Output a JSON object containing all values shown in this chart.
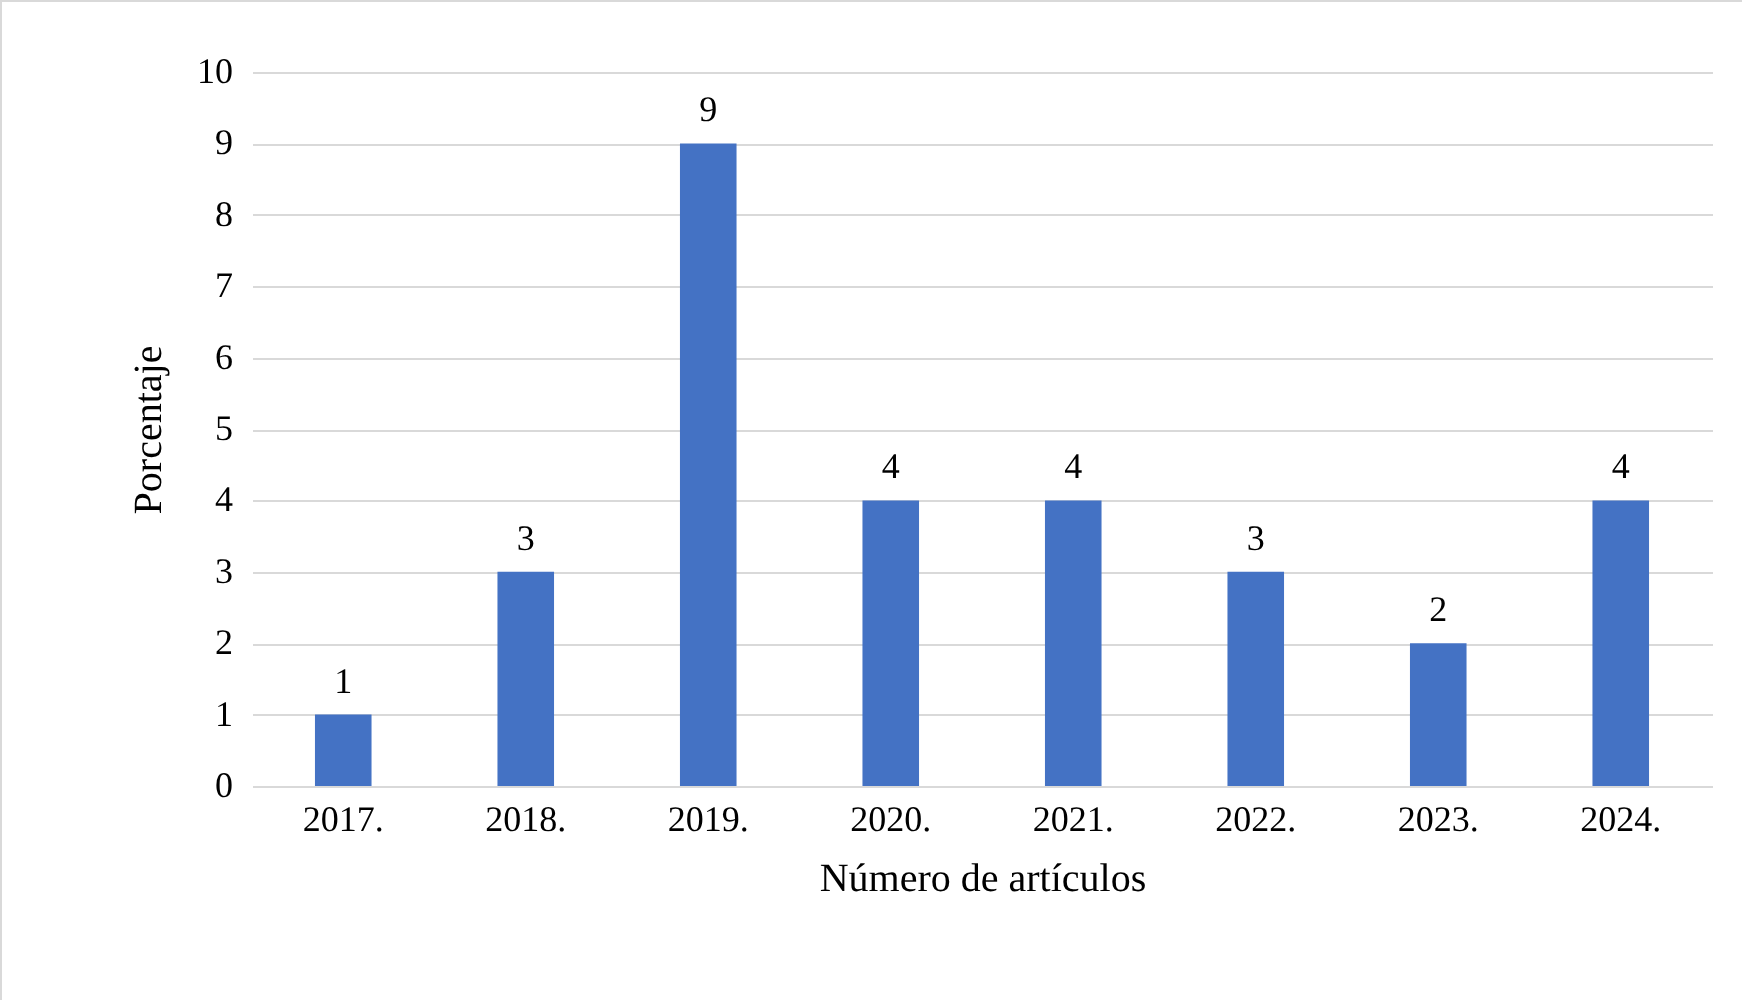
{
  "chart_data": {
    "type": "bar",
    "xlabel": "Número de artículos",
    "ylabel": "Porcentaje",
    "categories": [
      "2017.",
      "2018.",
      "2019.",
      "2020.",
      "2021.",
      "2022.",
      "2023.",
      "2024."
    ],
    "values": [
      1,
      3,
      9,
      4,
      4,
      3,
      2,
      4
    ],
    "color": "#4472c4",
    "ylim": [
      0,
      10
    ],
    "yticks": [
      0,
      1,
      2,
      3,
      4,
      5,
      6,
      7,
      8,
      9,
      10
    ],
    "grid": "y",
    "data_labels": true
  }
}
